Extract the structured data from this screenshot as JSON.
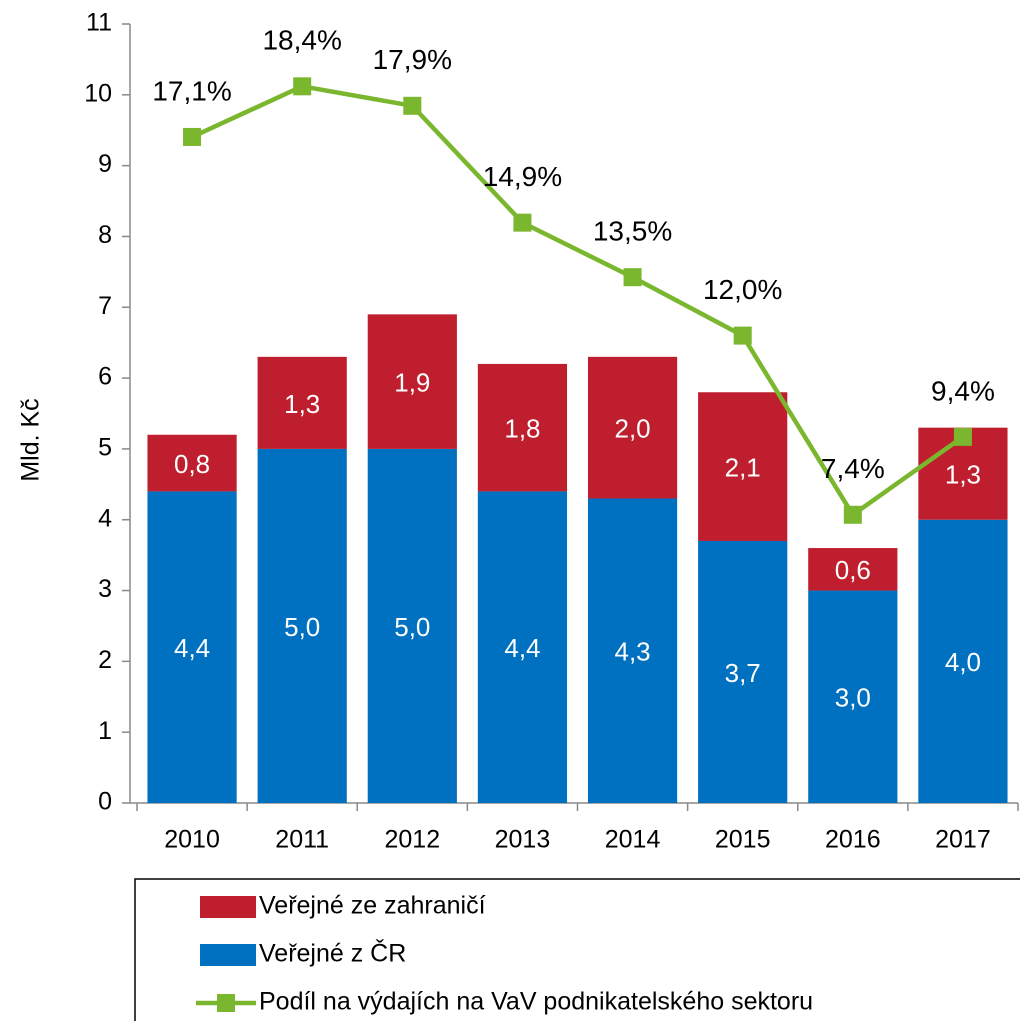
{
  "chart_data": {
    "type": "bar",
    "stacked": true,
    "y_label": "Mld. Kč",
    "categories": [
      "2010",
      "2011",
      "2012",
      "2013",
      "2014",
      "2015",
      "2016",
      "2017"
    ],
    "series": [
      {
        "name": "Veřejné ze zahraničí",
        "color": "#be1e2d",
        "values": [
          0.8,
          1.3,
          1.9,
          1.8,
          2.0,
          2.1,
          0.6,
          1.3
        ],
        "value_labels": [
          "0,8",
          "1,3",
          "1,9",
          "1,8",
          "2,0",
          "2,1",
          "0,6",
          "1,3"
        ]
      },
      {
        "name": "Veřejné z ČR",
        "color": "#0070c0",
        "values": [
          4.4,
          5.0,
          5.0,
          4.4,
          4.3,
          3.7,
          3.0,
          4.0
        ],
        "value_labels": [
          "4,4",
          "5,0",
          "5,0",
          "4,4",
          "4,3",
          "3,7",
          "3,0",
          "4,0"
        ]
      },
      {
        "name": "Podíl na výdajích na VaV podnikatelského sektoru",
        "type": "line",
        "axis": "y2",
        "color": "#7ab62e",
        "values": [
          17.1,
          18.4,
          17.9,
          14.9,
          13.5,
          12.0,
          7.4,
          9.4
        ],
        "value_labels": [
          "17,1%",
          "18,4%",
          "17,9%",
          "14,9%",
          "13,5%",
          "12,0%",
          "7,4%",
          "9,4%"
        ]
      }
    ],
    "ylim": [
      0,
      11
    ],
    "yticks": [
      0,
      1,
      2,
      3,
      4,
      5,
      6,
      7,
      8,
      9,
      10,
      11
    ],
    "y2lim": [
      0,
      20
    ],
    "legend": "bottom"
  }
}
